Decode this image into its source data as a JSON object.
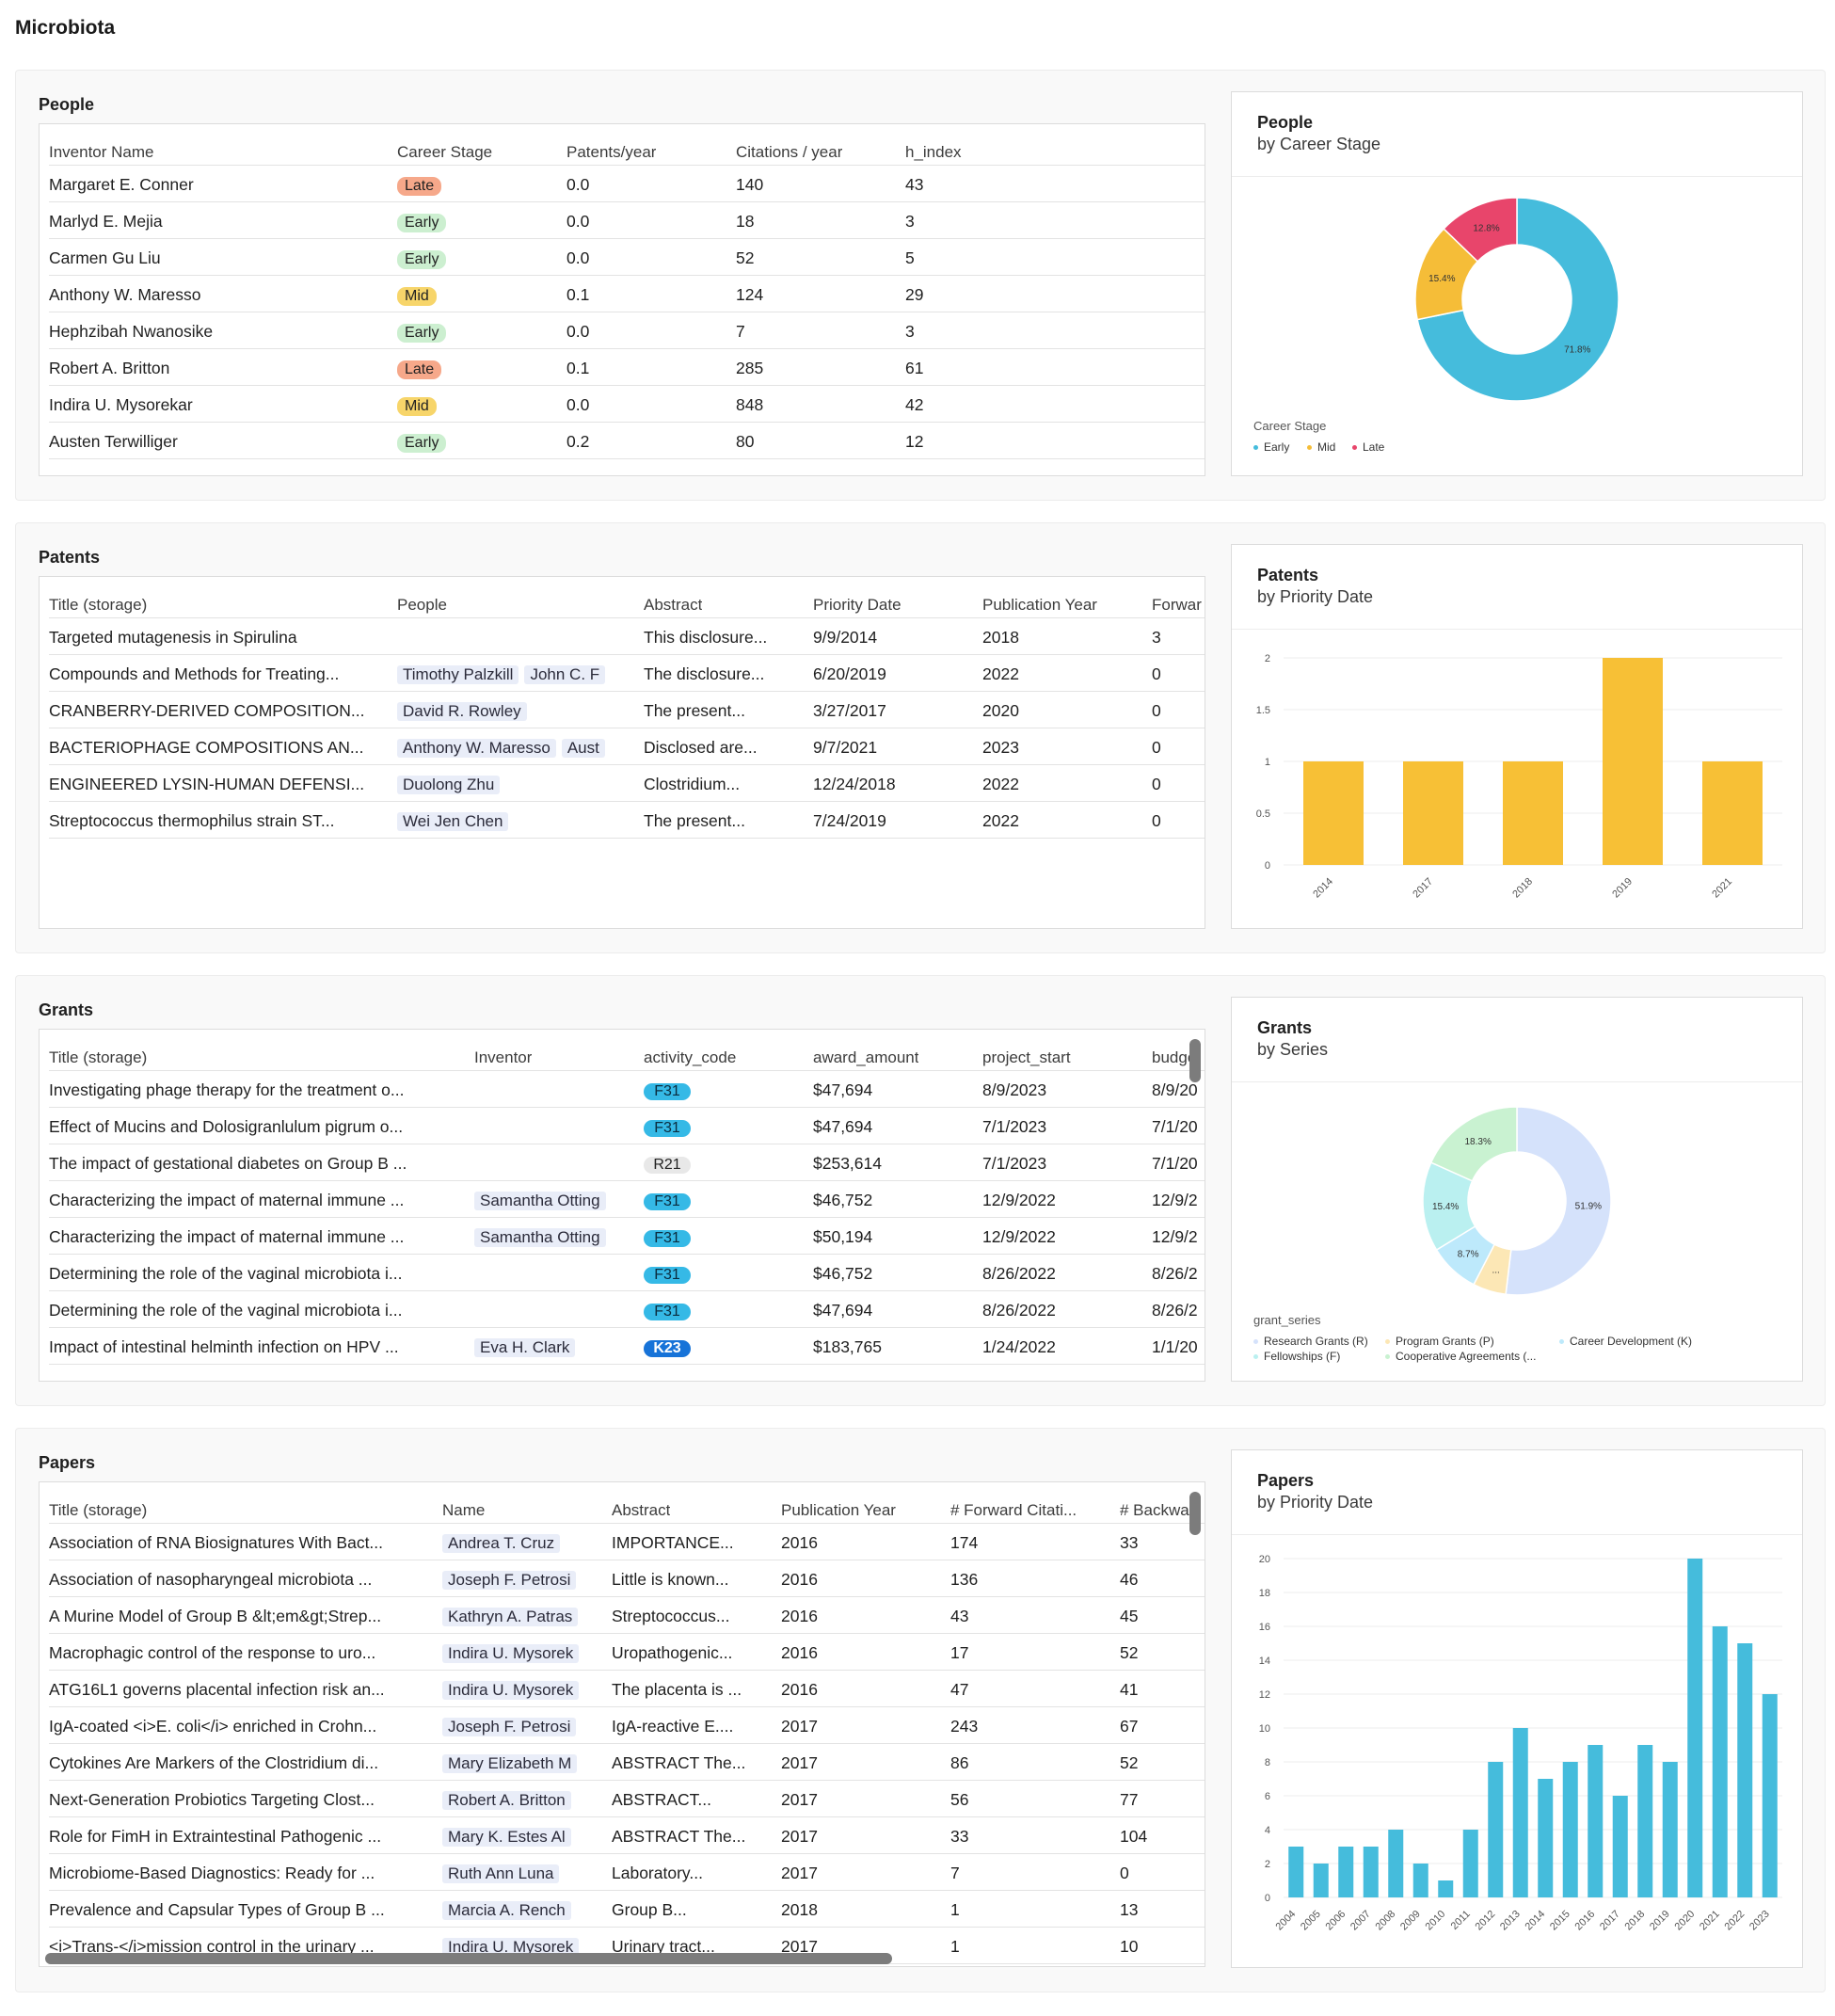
{
  "page_title": "Microbiota",
  "people": {
    "title": "People",
    "columns": [
      "Inventor Name",
      "Career Stage",
      "Patents/year",
      "Citations / year",
      "h_index"
    ],
    "rows": [
      {
        "name": "Margaret E. Conner",
        "stage": "Late",
        "patents": "0.0",
        "citations": "140",
        "h": "43"
      },
      {
        "name": "Marlyd E. Mejia",
        "stage": "Early",
        "patents": "0.0",
        "citations": "18",
        "h": "3"
      },
      {
        "name": "Carmen Gu Liu",
        "stage": "Early",
        "patents": "0.0",
        "citations": "52",
        "h": "5"
      },
      {
        "name": "Anthony W. Maresso",
        "stage": "Mid",
        "patents": "0.1",
        "citations": "124",
        "h": "29"
      },
      {
        "name": "Hephzibah Nwanosike",
        "stage": "Early",
        "patents": "0.0",
        "citations": "7",
        "h": "3"
      },
      {
        "name": "Robert A. Britton",
        "stage": "Late",
        "patents": "0.1",
        "citations": "285",
        "h": "61"
      },
      {
        "name": "Indira U. Mysorekar",
        "stage": "Mid",
        "patents": "0.0",
        "citations": "848",
        "h": "42"
      },
      {
        "name": "Austen Terwilliger",
        "stage": "Early",
        "patents": "0.2",
        "citations": "80",
        "h": "12"
      }
    ],
    "chart": {
      "title": "People",
      "subtitle": "by Career Stage",
      "legend_title": "Career Stage",
      "labels": [
        "71.8%",
        "15.4%",
        "12.8%"
      ]
    }
  },
  "patents": {
    "title": "Patents",
    "columns": [
      "Title (storage)",
      "People",
      "Abstract",
      "Priority Date",
      "Publication Year",
      "Forwar"
    ],
    "rows": [
      {
        "title": "Targeted mutagenesis in Spirulina",
        "people": [],
        "abstract": "This disclosure...",
        "priority": "9/9/2014",
        "pubyear": "2018",
        "forward": "3"
      },
      {
        "title": "Compounds and Methods for Treating...",
        "people": [
          "Timothy Palzkill",
          "John C. F"
        ],
        "abstract": "The disclosure...",
        "priority": "6/20/2019",
        "pubyear": "2022",
        "forward": "0"
      },
      {
        "title": "CRANBERRY-DERIVED COMPOSITION...",
        "people": [
          "David R. Rowley"
        ],
        "abstract": "The present...",
        "priority": "3/27/2017",
        "pubyear": "2020",
        "forward": "0"
      },
      {
        "title": "BACTERIOPHAGE COMPOSITIONS AN...",
        "people": [
          "Anthony W. Maresso",
          "Aust"
        ],
        "abstract": "Disclosed are...",
        "priority": "9/7/2021",
        "pubyear": "2023",
        "forward": "0"
      },
      {
        "title": "ENGINEERED LYSIN-HUMAN DEFENSI...",
        "people": [
          "Duolong Zhu"
        ],
        "abstract": "Clostridium...",
        "priority": "12/24/2018",
        "pubyear": "2022",
        "forward": "0"
      },
      {
        "title": "Streptococcus thermophilus strain ST...",
        "people": [
          "Wei Jen Chen"
        ],
        "abstract": "The present...",
        "priority": "7/24/2019",
        "pubyear": "2022",
        "forward": "0"
      }
    ],
    "chart": {
      "title": "Patents",
      "subtitle": "by Priority Date"
    }
  },
  "grants": {
    "title": "Grants",
    "columns": [
      "Title (storage)",
      "Inventor",
      "activity_code",
      "award_amount",
      "project_start",
      "budge"
    ],
    "rows": [
      {
        "title": "Investigating phage therapy for the treatment o...",
        "inventor": "",
        "code": "F31",
        "amount": "$47,694",
        "start": "8/9/2023",
        "budget": "8/9/20"
      },
      {
        "title": "Effect of Mucins and Dolosigranlulum pigrum o...",
        "inventor": "",
        "code": "F31",
        "amount": "$47,694",
        "start": "7/1/2023",
        "budget": "7/1/20"
      },
      {
        "title": "The impact of gestational diabetes on Group B ...",
        "inventor": "",
        "code": "R21",
        "amount": "$253,614",
        "start": "7/1/2023",
        "budget": "7/1/20"
      },
      {
        "title": "Characterizing the impact of maternal immune ...",
        "inventor": "Samantha Otting",
        "code": "F31",
        "amount": "$46,752",
        "start": "12/9/2022",
        "budget": "12/9/2"
      },
      {
        "title": "Characterizing the impact of maternal immune ...",
        "inventor": "Samantha Otting",
        "code": "F31",
        "amount": "$50,194",
        "start": "12/9/2022",
        "budget": "12/9/2"
      },
      {
        "title": "Determining the role of the vaginal microbiota i...",
        "inventor": "",
        "code": "F31",
        "amount": "$46,752",
        "start": "8/26/2022",
        "budget": "8/26/2"
      },
      {
        "title": "Determining the role of the vaginal microbiota i...",
        "inventor": "",
        "code": "F31",
        "amount": "$47,694",
        "start": "8/26/2022",
        "budget": "8/26/2"
      },
      {
        "title": "Impact of intestinal helminth infection on HPV ...",
        "inventor": "Eva H. Clark",
        "code": "K23",
        "amount": "$183,765",
        "start": "1/24/2022",
        "budget": "1/1/20"
      }
    ],
    "chart": {
      "title": "Grants",
      "subtitle": "by Series",
      "legend_title": "grant_series",
      "labels": [
        "51.9%",
        "8.7%",
        "15.4%",
        "18.3%",
        "..."
      ],
      "legend": [
        "Research Grants (R)",
        "Program Grants (P)",
        "Career Development (K)",
        "Fellowships (F)",
        "Cooperative Agreements (..."
      ]
    }
  },
  "papers": {
    "title": "Papers",
    "columns": [
      "Title (storage)",
      "Name",
      "Abstract",
      "Publication Year",
      "# Forward Citati...",
      "# Backwar"
    ],
    "rows": [
      {
        "title": "Association of RNA Biosignatures With Bact...",
        "name": "Andrea T. Cruz",
        "abstract": "IMPORTANCE...",
        "year": "2016",
        "fwd": "174",
        "bwd": "33"
      },
      {
        "title": "Association of nasopharyngeal microbiota ...",
        "name": "Joseph F. Petrosi",
        "abstract": "Little is known...",
        "year": "2016",
        "fwd": "136",
        "bwd": "46"
      },
      {
        "title": "A Murine Model of Group B &lt;em&gt;Strep...",
        "name": "Kathryn A. Patras",
        "abstract": "Streptococcus...",
        "year": "2016",
        "fwd": "43",
        "bwd": "45"
      },
      {
        "title": "Macrophagic control of the response to uro...",
        "name": "Indira U. Mysorek",
        "abstract": "Uropathogenic...",
        "year": "2016",
        "fwd": "17",
        "bwd": "52"
      },
      {
        "title": "ATG16L1 governs placental infection risk an...",
        "name": "Indira U. Mysorek",
        "abstract": "The placenta is ...",
        "year": "2016",
        "fwd": "47",
        "bwd": "41"
      },
      {
        "title": "IgA-coated <i>E. coli</i> enriched in Crohn...",
        "name": "Joseph F. Petrosi",
        "abstract": "IgA-reactive E....",
        "year": "2017",
        "fwd": "243",
        "bwd": "67"
      },
      {
        "title": "Cytokines Are Markers of the Clostridium di...",
        "name": "Mary Elizabeth M",
        "abstract": "ABSTRACT The...",
        "year": "2017",
        "fwd": "86",
        "bwd": "52"
      },
      {
        "title": "Next-Generation Probiotics Targeting Clost...",
        "name": "Robert A. Britton",
        "abstract": "ABSTRACT...",
        "year": "2017",
        "fwd": "56",
        "bwd": "77"
      },
      {
        "title": "Role for FimH in Extraintestinal Pathogenic ...",
        "name": "Mary K. Estes  Al",
        "abstract": "ABSTRACT The...",
        "year": "2017",
        "fwd": "33",
        "bwd": "104"
      },
      {
        "title": "Microbiome-Based Diagnostics: Ready for ...",
        "name": "Ruth Ann Luna",
        "abstract": "Laboratory...",
        "year": "2017",
        "fwd": "7",
        "bwd": "0"
      },
      {
        "title": "Prevalence and Capsular Types of Group B ...",
        "name": "Marcia A. Rench",
        "abstract": "Group B...",
        "year": "2018",
        "fwd": "1",
        "bwd": "13"
      },
      {
        "title": "<i>Trans-</i>mission control in the urinary ...",
        "name": "Indira U. Mysorek",
        "abstract": "Urinary tract...",
        "year": "2017",
        "fwd": "1",
        "bwd": "10"
      }
    ],
    "chart": {
      "title": "Papers",
      "subtitle": "by Priority Date"
    }
  },
  "colors": {
    "early": "#45bcdc",
    "mid": "#f5bd38",
    "late": "#e8456b",
    "bar_patents": "#f7c036",
    "bar_papers": "#45bcdc",
    "research": "#d5e2fb",
    "program": "#fce7b5",
    "career": "#bde9fb",
    "fellowships": "#baf0f0",
    "cooperative": "#c9f2d1"
  },
  "chart_data": [
    {
      "type": "pie",
      "title": "People",
      "subtitle": "by Career Stage",
      "legend_title": "Career Stage",
      "categories": [
        "Early",
        "Mid",
        "Late"
      ],
      "values": [
        71.8,
        15.4,
        12.8
      ],
      "legend_position": "bottom-left"
    },
    {
      "type": "bar",
      "title": "Patents",
      "subtitle": "by Priority Date",
      "categories": [
        "2014",
        "2017",
        "2018",
        "2019",
        "2021"
      ],
      "values": [
        1,
        1,
        1,
        2,
        1
      ],
      "ylim": [
        0,
        2
      ],
      "yticks": [
        "0",
        "0.5",
        "1",
        "1.5",
        "2"
      ],
      "grid": true
    },
    {
      "type": "pie",
      "title": "Grants",
      "subtitle": "by Series",
      "legend_title": "grant_series",
      "categories": [
        "Research Grants (R)",
        "Program Grants (P)",
        "Career Development (K)",
        "Fellowships (F)",
        "Cooperative Agreements (..."
      ],
      "values": [
        51.9,
        5.7,
        8.7,
        15.4,
        18.3
      ],
      "legend_position": "bottom-left"
    },
    {
      "type": "bar",
      "title": "Papers",
      "subtitle": "by Priority Date",
      "categories": [
        "2004",
        "2005",
        "2006",
        "2007",
        "2008",
        "2009",
        "2010",
        "2011",
        "2012",
        "2013",
        "2014",
        "2015",
        "2016",
        "2017",
        "2018",
        "2019",
        "2020",
        "2021",
        "2022",
        "2023"
      ],
      "values": [
        3,
        2,
        3,
        3,
        4,
        2,
        1,
        4,
        8,
        10,
        7,
        8,
        9,
        6,
        9,
        8,
        20,
        16,
        15,
        12
      ],
      "ylim": [
        0,
        20
      ],
      "yticks": [
        "0",
        "2",
        "4",
        "6",
        "8",
        "10",
        "12",
        "14",
        "16",
        "18",
        "20"
      ],
      "grid": true
    }
  ]
}
